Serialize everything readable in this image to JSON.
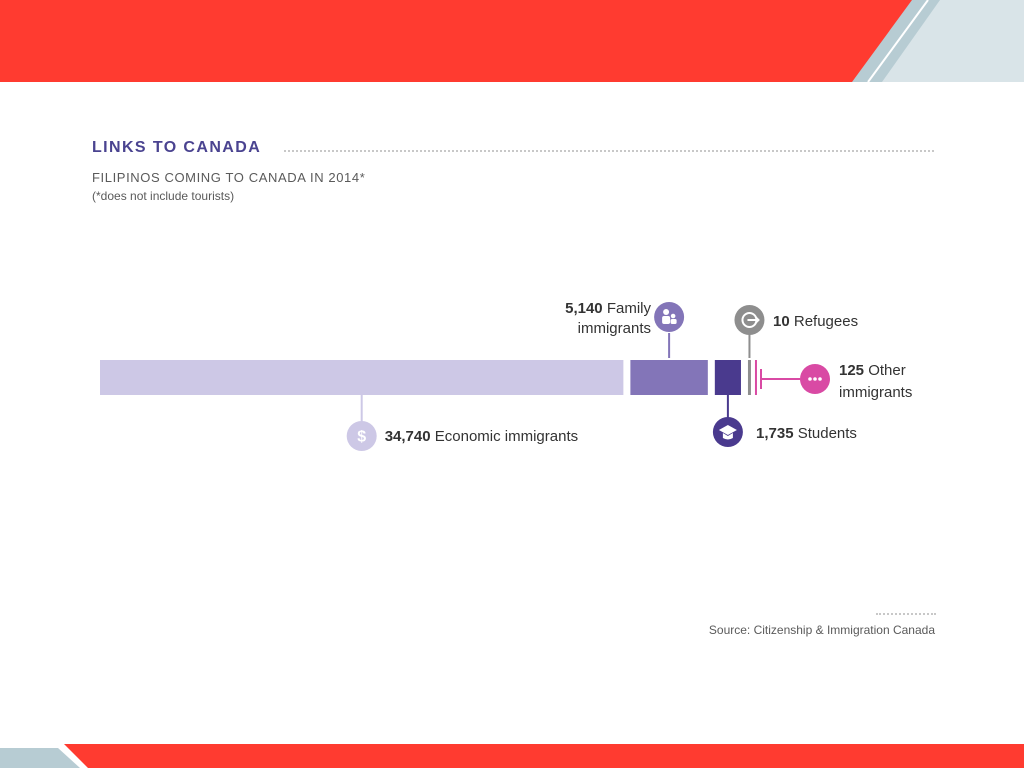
{
  "header": {
    "section_title": "LINKS TO CANADA",
    "subtitle": "FILIPINOS COMING TO CANADA IN 2014*",
    "note": "(*does not include tourists)"
  },
  "colors": {
    "banner_red": "#ff3b30",
    "banner_stripe": "#b7ccd3",
    "economic": "#cdc8e6",
    "family": "#8375b8",
    "students": "#4a3a8e",
    "refugees": "#8e8e8e",
    "other": "#d94aa4"
  },
  "chart_data": {
    "type": "bar",
    "orientation": "horizontal-stacked",
    "title": "FILIPINOS COMING TO CANADA IN 2014*",
    "categories": [
      "Economic immigrants",
      "Family immigrants",
      "Students",
      "Refugees",
      "Other immigrants"
    ],
    "series": [
      {
        "values": [
          34740,
          5140,
          1735,
          10,
          125
        ]
      }
    ],
    "labels": [
      {
        "value": "34,740",
        "text": "Economic immigrants",
        "icon": "dollar-icon",
        "position": "below"
      },
      {
        "value": "5,140",
        "text": "Family",
        "text2": "immigrants",
        "icon": "family-icon",
        "position": "above"
      },
      {
        "value": "1,735",
        "text": "Students",
        "icon": "graduation-cap-icon",
        "position": "below"
      },
      {
        "value": "10",
        "text": "Refugees",
        "icon": "refugee-icon",
        "position": "above"
      },
      {
        "value": "125",
        "text": "Other",
        "text2": "immigrants",
        "icon": "more-icon",
        "position": "right"
      }
    ],
    "legend": "none",
    "grid": false
  },
  "footer": {
    "source": "Source: Citizenship & Immigration Canada"
  }
}
